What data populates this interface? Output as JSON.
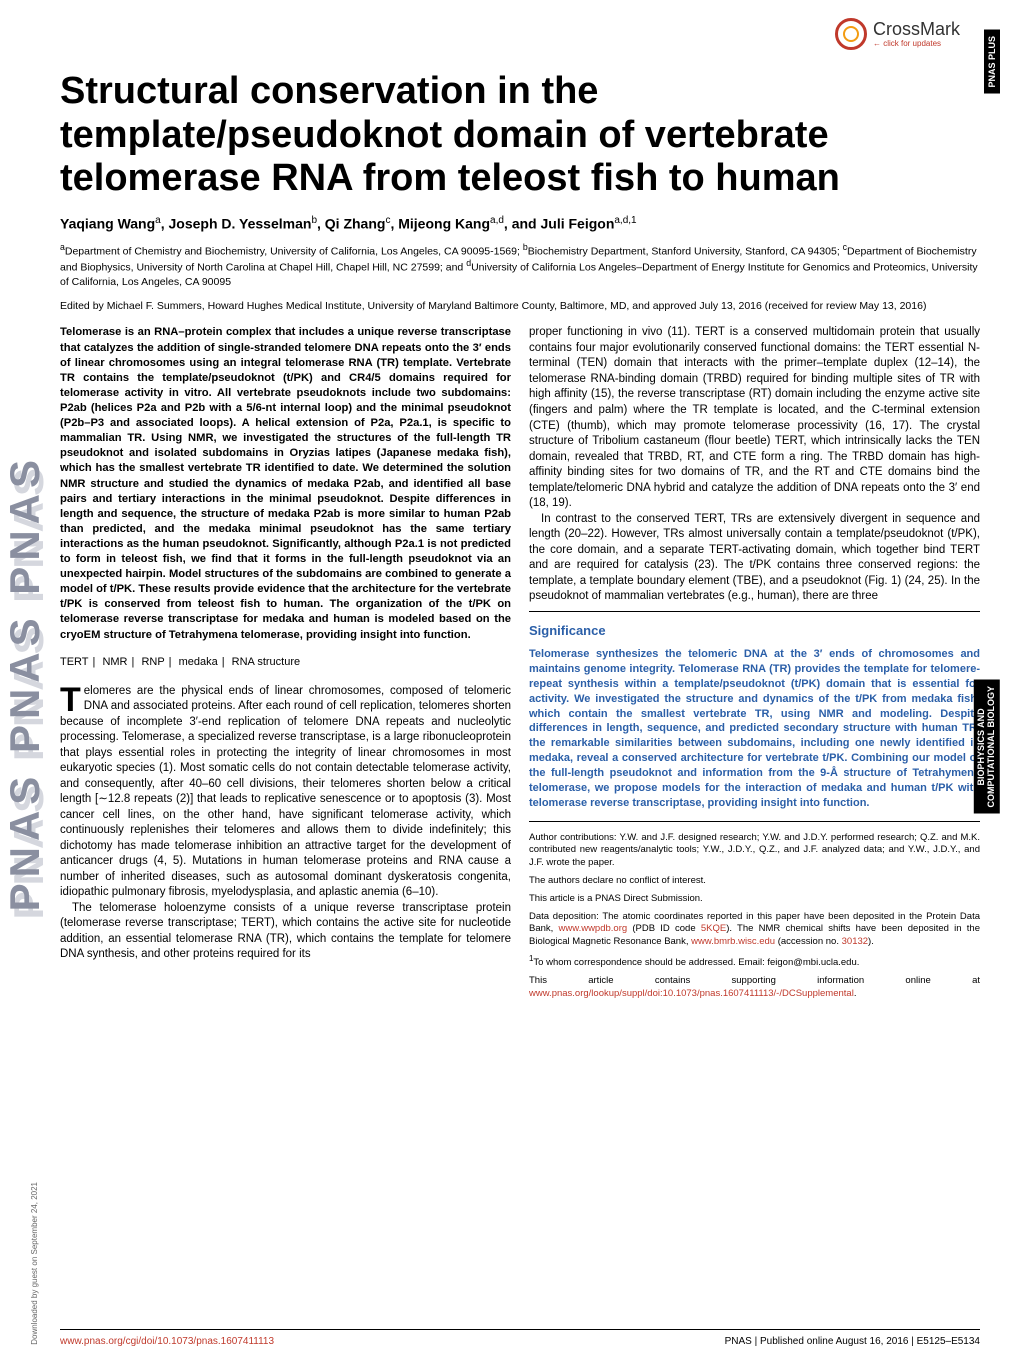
{
  "crossmark": {
    "label": "CrossMark",
    "sub": "← click for updates"
  },
  "side_labels": {
    "plus": "PNAS PLUS",
    "bio": "BIOPHYSICS AND\nCOMPUTATIONAL BIOLOGY"
  },
  "spine": "PNAS  PNAS  PNAS",
  "title": "Structural conservation in the template/pseudoknot domain of vertebrate telomerase RNA from teleost fish to human",
  "authors_html": "Yaqiang Wang<sup>a</sup>, Joseph D. Yesselman<sup>b</sup>, Qi Zhang<sup>c</sup>, Mijeong Kang<sup>a,d</sup>, and Juli Feigon<sup>a,d,1</sup>",
  "affiliations_html": "<sup>a</sup>Department of Chemistry and Biochemistry, University of California, Los Angeles, CA 90095-1569; <sup>b</sup>Biochemistry Department, Stanford University, Stanford, CA 94305; <sup>c</sup>Department of Biochemistry and Biophysics, University of North Carolina at Chapel Hill, Chapel Hill, NC 27599; and <sup>d</sup>University of California Los Angeles–Department of Energy Institute for Genomics and Proteomics, University of California, Los Angeles, CA 90095",
  "edited": "Edited by Michael F. Summers, Howard Hughes Medical Institute, University of Maryland Baltimore County, Baltimore, MD, and approved July 13, 2016 (received for review May 13, 2016)",
  "abstract": "Telomerase is an RNA–protein complex that includes a unique reverse transcriptase that catalyzes the addition of single-stranded telomere DNA repeats onto the 3′ ends of linear chromosomes using an integral telomerase RNA (TR) template. Vertebrate TR contains the template/pseudoknot (t/PK) and CR4/5 domains required for telomerase activity in vitro. All vertebrate pseudoknots include two subdomains: P2ab (helices P2a and P2b with a 5/6-nt internal loop) and the minimal pseudoknot (P2b–P3 and associated loops). A helical extension of P2a, P2a.1, is specific to mammalian TR. Using NMR, we investigated the structures of the full-length TR pseudoknot and isolated subdomains in Oryzias latipes (Japanese medaka fish), which has the smallest vertebrate TR identified to date. We determined the solution NMR structure and studied the dynamics of medaka P2ab, and identified all base pairs and tertiary interactions in the minimal pseudoknot. Despite differences in length and sequence, the structure of medaka P2ab is more similar to human P2ab than predicted, and the medaka minimal pseudoknot has the same tertiary interactions as the human pseudoknot. Significantly, although P2a.1 is not predicted to form in teleost fish, we find that it forms in the full-length pseudoknot via an unexpected hairpin. Model structures of the subdomains are combined to generate a model of t/PK. These results provide evidence that the architecture for the vertebrate t/PK is conserved from teleost fish to human. The organization of the t/PK on telomerase reverse transcriptase for medaka and human is modeled based on the cryoEM structure of Tetrahymena telomerase, providing insight into function.",
  "keywords": [
    "TERT",
    "NMR",
    "RNP",
    "medaka",
    "RNA structure"
  ],
  "body_left": "elomeres are the physical ends of linear chromosomes, composed of telomeric DNA and associated proteins. After each round of cell replication, telomeres shorten because of incomplete 3′-end replication of telomere DNA repeats and nucleolytic processing. Telomerase, a specialized reverse transcriptase, is a large ribonucleoprotein that plays essential roles in protecting the integrity of linear chromosomes in most eukaryotic species (1). Most somatic cells do not contain detectable telomerase activity, and consequently, after 40–60 cell divisions, their telomeres shorten below a critical length [∼12.8 repeats (2)] that leads to replicative senescence or to apoptosis (3). Most cancer cell lines, on the other hand, have significant telomerase activity, which continuously replenishes their telomeres and allows them to divide indefinitely; this dichotomy has made telomerase inhibition an attractive target for the development of anticancer drugs (4, 5). Mutations in human telomerase proteins and RNA cause a number of inherited diseases, such as autosomal dominant dyskeratosis congenita, idiopathic pulmonary fibrosis, myelodysplasia, and aplastic anemia (6–10).",
  "body_left2": "The telomerase holoenzyme consists of a unique reverse transcriptase protein (telomerase reverse transcriptase; TERT), which contains the active site for nucleotide addition, an essential telomerase RNA (TR), which contains the template for telomere DNA synthesis, and other proteins required for its",
  "body_right1": "proper functioning in vivo (11). TERT is a conserved multidomain protein that usually contains four major evolutionarily conserved functional domains: the TERT essential N-terminal (TEN) domain that interacts with the primer–template duplex (12–14), the telomerase RNA-binding domain (TRBD) required for binding multiple sites of TR with high affinity (15), the reverse transcriptase (RT) domain including the enzyme active site (fingers and palm) where the TR template is located, and the C-terminal extension (CTE) (thumb), which may promote telomerase processivity (16, 17). The crystal structure of Tribolium castaneum (flour beetle) TERT, which intrinsically lacks the TEN domain, revealed that TRBD, RT, and CTE form a ring. The TRBD domain has high-affinity binding sites for two domains of TR, and the RT and CTE domains bind the template/telomeric DNA hybrid and catalyze the addition of DNA repeats onto the 3′ end (18, 19).",
  "body_right2": "In contrast to the conserved TERT, TRs are extensively divergent in sequence and length (20–22). However, TRs almost universally contain a template/pseudoknot (t/PK), the core domain, and a separate TERT-activating domain, which together bind TERT and are required for catalysis (23). The t/PK contains three conserved regions: the template, a template boundary element (TBE), and a pseudoknot (Fig. 1) (24, 25). In the pseudoknot of mammalian vertebrates (e.g., human), there are three",
  "significance": {
    "heading": "Significance",
    "text": "Telomerase synthesizes the telomeric DNA at the 3′ ends of chromosomes and maintains genome integrity. Telomerase RNA (TR) provides the template for telomere-repeat synthesis within a template/pseudoknot (t/PK) domain that is essential for activity. We investigated the structure and dynamics of the t/PK from medaka fish, which contain the smallest vertebrate TR, using NMR and modeling. Despite differences in length, sequence, and predicted secondary structure with human TR, the remarkable similarities between subdomains, including one newly identified in medaka, reveal a conserved architecture for vertebrate t/PK. Combining our model of the full-length pseudoknot and information from the 9-Å structure of Tetrahymena telomerase, we propose models for the interaction of medaka and human t/PK with telomerase reverse transcriptase, providing insight into function."
  },
  "footnotes": {
    "contrib": "Author contributions: Y.W. and J.F. designed research; Y.W. and J.D.Y. performed research; Q.Z. and M.K. contributed new reagents/analytic tools; Y.W., J.D.Y., Q.Z., and J.F. analyzed data; and Y.W., J.D.Y., and J.F. wrote the paper.",
    "conflict": "The authors declare no conflict of interest.",
    "direct": "This article is a PNAS Direct Submission.",
    "deposit_html": "Data deposition: The atomic coordinates reported in this paper have been deposited in the Protein Data Bank, <a href='#'>www.wwpdb.org</a> (PDB ID code <a href='#'>5KQE</a>). The NMR chemical shifts have been deposited in the Biological Magnetic Resonance Bank, <a href='#'>www.bmrb.wisc.edu</a> (accession no. <a href='#'>30132</a>).",
    "corr_html": "<sup>1</sup>To whom correspondence should be addressed. Email: feigon@mbi.ucla.edu.",
    "supp_html": "This article contains supporting information online at <a href='#'>www.pnas.org/lookup/suppl/doi:10.1073/pnas.1607411113/-/DCSupplemental</a>."
  },
  "footer": {
    "left_html": "<a href='#'>www.pnas.org/cgi/doi/10.1073/pnas.1607411113</a>",
    "right": "PNAS | Published online August 16, 2016 | E5125–E5134"
  },
  "download_note": "Downloaded by guest on September 24, 2021"
}
